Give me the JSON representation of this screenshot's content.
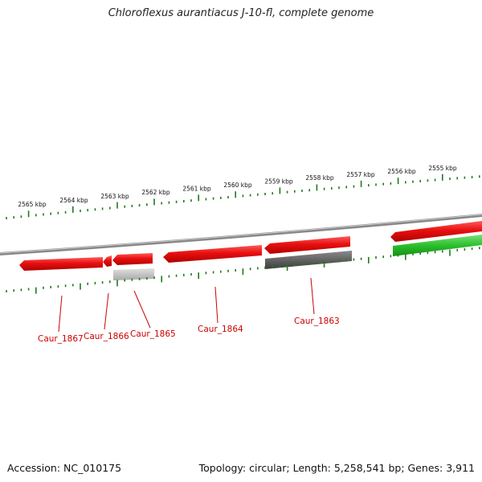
{
  "title": "Chloroflexus aurantiacus J-10-fl, complete genome",
  "footer": {
    "accession": "Accession: NC_010175",
    "summary": "Topology: circular; Length: 5,258,541 bp; Genes: 3,911"
  },
  "colors": {
    "forward_gene": "#e81010",
    "reverse_gene": "#e81010",
    "rna_gene": "#2bbf2b",
    "cds_gray_light": "#b8b8b8",
    "cds_gray_dark": "#555555",
    "ruler_ticks": "#1f7a1f",
    "backbone": "#888888",
    "locus_label": "#cc0000"
  },
  "outer_ruler_labels": [
    "2565 kbp",
    "2564 kbp",
    "2563 kbp",
    "2562 kbp",
    "2561 kbp",
    "2560 kbp",
    "2559 kbp",
    "2558 kbp",
    "2557 kbp",
    "2556 kbp",
    "2555 kbp"
  ],
  "locus_tags": [
    "Caur_1867",
    "Caur_1866",
    "Caur_1865",
    "Caur_1864",
    "Caur_1863"
  ]
}
